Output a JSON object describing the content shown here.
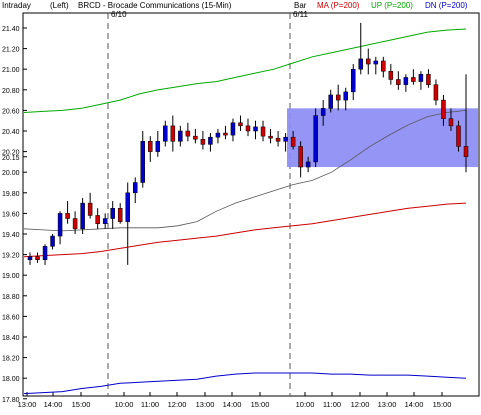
{
  "header": {
    "timeframe": "Intraday",
    "position": "(Left)",
    "title": "BRCD - Brocade Communications  (15-Min)",
    "bar_label": "Bar",
    "legend": [
      {
        "label": "MA (P=200)",
        "color": "#cc0000"
      },
      {
        "label": "UP (P=200)",
        "color": "#00aa00"
      },
      {
        "label": "DN (P=200)",
        "color": "#0000cc"
      }
    ]
  },
  "colors": {
    "up_candle": "#0000cc",
    "down_candle": "#cc0000",
    "band_upper": "#00aa00",
    "band_lower": "#0000cc",
    "moving_average": "#cc0000",
    "price_ma": "#555555",
    "highlight_box": "#8f8ff5"
  },
  "chart_data": {
    "type": "candlestick",
    "title": "BRCD - Brocade Communications  (15-Min)",
    "y_range": [
      17.8,
      21.6
    ],
    "y_ticks": [
      "21.40",
      "21.20",
      "21.00",
      "20.80",
      "20.60",
      "20.40",
      "20.20",
      "20.15",
      "20.00",
      "19.80",
      "19.60",
      "19.40",
      "19.20",
      "19.00",
      "18.80",
      "18.60",
      "18.40",
      "18.20",
      "18.00",
      "17.80"
    ],
    "x_ticks": [
      "13:00",
      "14:00",
      "15:00",
      "10:00",
      "11:00",
      "12:00",
      "13:00",
      "14:00",
      "15:00",
      "10:00",
      "11:00",
      "12:00",
      "13:00",
      "14:00",
      "15:00"
    ],
    "session_labels": [
      "6/10",
      "6/11"
    ],
    "candles": [
      {
        "o": 19.15,
        "h": 19.22,
        "l": 19.1,
        "c": 19.18
      },
      {
        "o": 19.18,
        "h": 19.22,
        "l": 19.12,
        "c": 19.15
      },
      {
        "o": 19.15,
        "h": 19.3,
        "l": 19.1,
        "c": 19.28
      },
      {
        "o": 19.28,
        "h": 19.4,
        "l": 19.25,
        "c": 19.38
      },
      {
        "o": 19.38,
        "h": 19.62,
        "l": 19.3,
        "c": 19.6
      },
      {
        "o": 19.6,
        "h": 19.72,
        "l": 19.5,
        "c": 19.55
      },
      {
        "o": 19.55,
        "h": 19.62,
        "l": 19.4,
        "c": 19.45
      },
      {
        "o": 19.45,
        "h": 19.75,
        "l": 19.4,
        "c": 19.7
      },
      {
        "o": 19.7,
        "h": 19.8,
        "l": 19.55,
        "c": 19.58
      },
      {
        "o": 19.58,
        "h": 19.65,
        "l": 19.45,
        "c": 19.5
      },
      {
        "o": 19.5,
        "h": 19.6,
        "l": 19.45,
        "c": 19.55
      },
      {
        "o": 19.55,
        "h": 19.72,
        "l": 19.45,
        "c": 19.65
      },
      {
        "o": 19.65,
        "h": 19.7,
        "l": 19.5,
        "c": 19.52
      },
      {
        "o": 19.52,
        "h": 19.9,
        "l": 19.1,
        "c": 19.8
      },
      {
        "o": 19.8,
        "h": 19.95,
        "l": 19.7,
        "c": 19.9
      },
      {
        "o": 19.9,
        "h": 20.4,
        "l": 19.85,
        "c": 20.3
      },
      {
        "o": 20.3,
        "h": 20.35,
        "l": 20.1,
        "c": 20.2
      },
      {
        "o": 20.2,
        "h": 20.4,
        "l": 20.15,
        "c": 20.3
      },
      {
        "o": 20.3,
        "h": 20.5,
        "l": 20.25,
        "c": 20.45
      },
      {
        "o": 20.45,
        "h": 20.55,
        "l": 20.2,
        "c": 20.3
      },
      {
        "o": 20.3,
        "h": 20.45,
        "l": 20.25,
        "c": 20.4
      },
      {
        "o": 20.4,
        "h": 20.48,
        "l": 20.3,
        "c": 20.35
      },
      {
        "o": 20.35,
        "h": 20.42,
        "l": 20.28,
        "c": 20.32
      },
      {
        "o": 20.32,
        "h": 20.4,
        "l": 20.22,
        "c": 20.27
      },
      {
        "o": 20.27,
        "h": 20.38,
        "l": 20.2,
        "c": 20.34
      },
      {
        "o": 20.34,
        "h": 20.42,
        "l": 20.28,
        "c": 20.38
      },
      {
        "o": 20.38,
        "h": 20.45,
        "l": 20.32,
        "c": 20.36
      },
      {
        "o": 20.36,
        "h": 20.52,
        "l": 20.3,
        "c": 20.48
      },
      {
        "o": 20.48,
        "h": 20.55,
        "l": 20.4,
        "c": 20.45
      },
      {
        "o": 20.45,
        "h": 20.52,
        "l": 20.35,
        "c": 20.4
      },
      {
        "o": 20.4,
        "h": 20.5,
        "l": 20.32,
        "c": 20.44
      },
      {
        "o": 20.44,
        "h": 20.5,
        "l": 20.3,
        "c": 20.35
      },
      {
        "o": 20.35,
        "h": 20.42,
        "l": 20.28,
        "c": 20.33
      },
      {
        "o": 20.33,
        "h": 20.4,
        "l": 20.25,
        "c": 20.3
      },
      {
        "o": 20.3,
        "h": 20.38,
        "l": 20.2,
        "c": 20.34
      },
      {
        "o": 20.34,
        "h": 20.4,
        "l": 20.22,
        "c": 20.25
      },
      {
        "o": 20.25,
        "h": 20.3,
        "l": 19.95,
        "c": 20.05
      },
      {
        "o": 20.05,
        "h": 20.15,
        "l": 20.0,
        "c": 20.1
      },
      {
        "o": 20.1,
        "h": 20.62,
        "l": 20.05,
        "c": 20.55
      },
      {
        "o": 20.55,
        "h": 20.7,
        "l": 20.45,
        "c": 20.62
      },
      {
        "o": 20.62,
        "h": 20.8,
        "l": 20.58,
        "c": 20.75
      },
      {
        "o": 20.75,
        "h": 20.85,
        "l": 20.6,
        "c": 20.7
      },
      {
        "o": 20.7,
        "h": 20.82,
        "l": 20.6,
        "c": 20.78
      },
      {
        "o": 20.78,
        "h": 21.05,
        "l": 20.7,
        "c": 21.0
      },
      {
        "o": 21.0,
        "h": 21.45,
        "l": 20.95,
        "c": 21.1
      },
      {
        "o": 21.1,
        "h": 21.2,
        "l": 20.95,
        "c": 21.05
      },
      {
        "o": 21.05,
        "h": 21.12,
        "l": 20.95,
        "c": 21.08
      },
      {
        "o": 21.08,
        "h": 21.12,
        "l": 20.92,
        "c": 20.98
      },
      {
        "o": 20.98,
        "h": 21.05,
        "l": 20.85,
        "c": 20.9
      },
      {
        "o": 20.9,
        "h": 20.98,
        "l": 20.8,
        "c": 20.85
      },
      {
        "o": 20.85,
        "h": 20.95,
        "l": 20.78,
        "c": 20.92
      },
      {
        "o": 20.92,
        "h": 21.0,
        "l": 20.85,
        "c": 20.88
      },
      {
        "o": 20.88,
        "h": 20.98,
        "l": 20.8,
        "c": 20.95
      },
      {
        "o": 20.95,
        "h": 21.0,
        "l": 20.82,
        "c": 20.85
      },
      {
        "o": 20.85,
        "h": 20.9,
        "l": 20.65,
        "c": 20.7
      },
      {
        "o": 20.7,
        "h": 20.75,
        "l": 20.45,
        "c": 20.52
      },
      {
        "o": 20.52,
        "h": 20.62,
        "l": 20.4,
        "c": 20.45
      },
      {
        "o": 20.45,
        "h": 20.5,
        "l": 20.2,
        "c": 20.25
      },
      {
        "o": 20.25,
        "h": 20.95,
        "l": 20.0,
        "c": 20.15
      }
    ],
    "series": [
      {
        "name": "UP (P=200)",
        "values": [
          20.58,
          20.59,
          20.6,
          20.62,
          20.66,
          20.7,
          20.76,
          20.8,
          20.83,
          20.86,
          20.88,
          20.92,
          20.96,
          21.0,
          21.06,
          21.12,
          21.16,
          21.2,
          21.24,
          21.28,
          21.32,
          21.36,
          21.38,
          21.39
        ]
      },
      {
        "name": "MA (P=200)",
        "values": [
          19.18,
          19.19,
          19.2,
          19.21,
          19.23,
          19.26,
          19.29,
          19.32,
          19.34,
          19.36,
          19.38,
          19.41,
          19.44,
          19.46,
          19.48,
          19.5,
          19.53,
          19.56,
          19.59,
          19.62,
          19.65,
          19.67,
          19.69,
          19.7
        ]
      },
      {
        "name": "DN (P=200)",
        "values": [
          17.85,
          17.86,
          17.87,
          17.9,
          17.92,
          17.95,
          17.96,
          17.97,
          17.98,
          17.99,
          18.02,
          18.04,
          18.05,
          18.05,
          18.05,
          18.05,
          18.04,
          18.04,
          18.03,
          18.03,
          18.03,
          18.02,
          18.01,
          18.0
        ]
      },
      {
        "name": "price average",
        "values": [
          19.45,
          19.44,
          19.43,
          19.44,
          19.45,
          19.46,
          19.46,
          19.46,
          19.48,
          19.52,
          19.62,
          19.7,
          19.76,
          19.82,
          19.88,
          19.92,
          20.0,
          20.12,
          20.25,
          20.36,
          20.46,
          20.54,
          20.58,
          20.6
        ]
      }
    ],
    "highlight_box": {
      "x_start_candle": 38,
      "x_end": "right",
      "y_top": 20.62,
      "y_bottom": 20.05
    },
    "session_breaks": [
      14,
      38
    ]
  }
}
